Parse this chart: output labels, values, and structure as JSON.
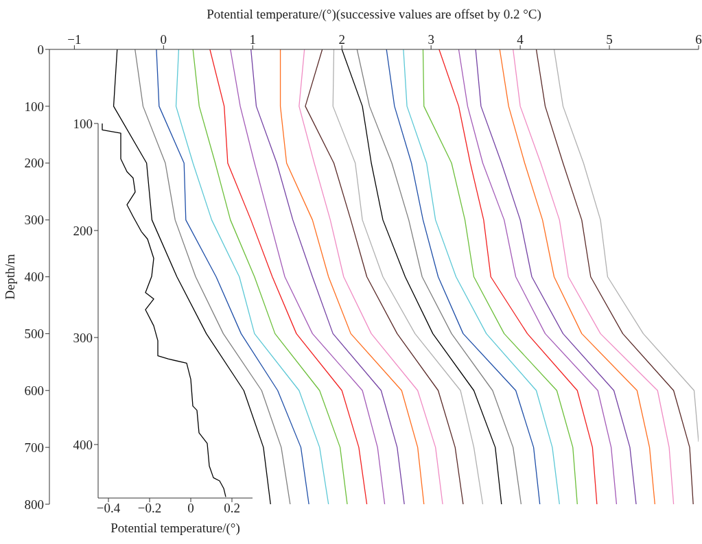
{
  "chart_data": [
    {
      "type": "line",
      "xlabel": "Potential temperature/(°)(successive values are offset by 0.2 °C)",
      "ylabel": "Depth/m",
      "xlim": [
        -1.28,
        6
      ],
      "xticks": [
        -1,
        0,
        1,
        2,
        3,
        4,
        5,
        6
      ],
      "ylim": [
        800,
        0
      ],
      "yticks": [
        0,
        100,
        200,
        300,
        400,
        500,
        600,
        700,
        800
      ],
      "series": [
        {
          "color": "#000000",
          "x": [
            -0.52,
            -0.56,
            -0.19,
            -0.13,
            0.15,
            0.48,
            0.9,
            1.12,
            1.2
          ],
          "values": [
            0,
            100,
            200,
            300,
            400,
            500,
            600,
            700,
            800
          ]
        },
        {
          "color": "#7f7f7f",
          "x": [
            -0.32,
            -0.23,
            0.02,
            0.13,
            0.36,
            0.67,
            1.1,
            1.32,
            1.42
          ],
          "values": [
            0,
            100,
            200,
            300,
            400,
            500,
            600,
            700,
            800
          ]
        },
        {
          "color": "#1f4fa8",
          "x": [
            -0.08,
            -0.05,
            0.23,
            0.25,
            0.59,
            0.87,
            1.28,
            1.54,
            1.63
          ],
          "values": [
            0,
            100,
            200,
            300,
            400,
            500,
            600,
            700,
            800
          ]
        },
        {
          "color": "#5cc8d6",
          "x": [
            0.17,
            0.14,
            0.33,
            0.54,
            0.85,
            1.02,
            1.52,
            1.75,
            1.85
          ],
          "values": [
            0,
            100,
            200,
            300,
            400,
            500,
            600,
            700,
            800
          ]
        },
        {
          "color": "#6cbf3a",
          "x": [
            0.33,
            0.4,
            0.58,
            0.75,
            1.02,
            1.25,
            1.75,
            1.98,
            2.06
          ],
          "values": [
            0,
            100,
            200,
            300,
            400,
            500,
            600,
            700,
            800
          ]
        },
        {
          "color": "#f22020",
          "x": [
            0.52,
            0.68,
            0.72,
            0.98,
            1.22,
            1.49,
            2.0,
            2.19,
            2.28
          ],
          "values": [
            0,
            100,
            200,
            300,
            400,
            500,
            600,
            700,
            800
          ]
        },
        {
          "color": "#a45cb8",
          "x": [
            0.75,
            0.86,
            1.02,
            1.19,
            1.36,
            1.67,
            2.23,
            2.4,
            2.48
          ],
          "values": [
            0,
            100,
            200,
            300,
            400,
            500,
            600,
            700,
            800
          ]
        },
        {
          "color": "#7442a4",
          "x": [
            0.98,
            1.04,
            1.27,
            1.45,
            1.67,
            1.9,
            2.44,
            2.62,
            2.7
          ],
          "values": [
            0,
            100,
            200,
            300,
            400,
            500,
            600,
            700,
            800
          ]
        },
        {
          "color": "#ff6f20",
          "x": [
            1.31,
            1.31,
            1.38,
            1.67,
            1.85,
            2.1,
            2.67,
            2.85,
            2.92
          ],
          "values": [
            0,
            100,
            200,
            300,
            400,
            500,
            600,
            700,
            800
          ]
        },
        {
          "color": "#f08cc4",
          "x": [
            1.58,
            1.52,
            1.69,
            1.87,
            2.02,
            2.33,
            2.85,
            3.05,
            3.13
          ],
          "values": [
            0,
            100,
            200,
            300,
            400,
            500,
            600,
            700,
            800
          ]
        },
        {
          "color": "#5a2a28",
          "x": [
            1.78,
            1.59,
            1.91,
            2.1,
            2.28,
            2.62,
            3.08,
            3.27,
            3.36
          ],
          "values": [
            0,
            100,
            200,
            300,
            400,
            500,
            600,
            700,
            800
          ]
        },
        {
          "color": "#b0b0b0",
          "x": [
            1.91,
            1.9,
            2.15,
            2.23,
            2.46,
            2.82,
            3.33,
            3.48,
            3.58
          ],
          "values": [
            0,
            100,
            200,
            300,
            400,
            500,
            600,
            700,
            800
          ]
        },
        {
          "color": "#000000",
          "x": [
            2.0,
            2.23,
            2.33,
            2.46,
            2.71,
            3.02,
            3.48,
            3.72,
            3.79
          ],
          "values": [
            0,
            100,
            200,
            300,
            400,
            500,
            600,
            700,
            800
          ]
        },
        {
          "color": "#7f7f7f",
          "x": [
            2.17,
            2.31,
            2.56,
            2.75,
            2.9,
            3.23,
            3.69,
            3.92,
            4.01
          ],
          "values": [
            0,
            100,
            200,
            300,
            400,
            500,
            600,
            700,
            800
          ]
        },
        {
          "color": "#1f4fa8",
          "x": [
            2.5,
            2.59,
            2.78,
            2.91,
            3.08,
            3.36,
            3.95,
            4.15,
            4.22
          ],
          "values": [
            0,
            100,
            200,
            300,
            400,
            500,
            600,
            700,
            800
          ]
        },
        {
          "color": "#5cc8d6",
          "x": [
            2.69,
            2.73,
            2.95,
            3.05,
            3.28,
            3.62,
            4.18,
            4.36,
            4.44
          ],
          "values": [
            0,
            100,
            200,
            300,
            400,
            500,
            600,
            700,
            800
          ]
        },
        {
          "color": "#6cbf3a",
          "x": [
            2.91,
            2.92,
            3.23,
            3.38,
            3.48,
            3.82,
            4.41,
            4.59,
            4.64
          ],
          "values": [
            0,
            100,
            200,
            300,
            400,
            500,
            600,
            700,
            800
          ]
        },
        {
          "color": "#f22020",
          "x": [
            3.09,
            3.31,
            3.44,
            3.59,
            3.67,
            4.08,
            4.64,
            4.81,
            4.86
          ],
          "values": [
            0,
            100,
            200,
            300,
            400,
            500,
            600,
            700,
            800
          ]
        },
        {
          "color": "#a45cb8",
          "x": [
            3.31,
            3.41,
            3.58,
            3.82,
            3.95,
            4.28,
            4.87,
            5.02,
            5.08
          ],
          "values": [
            0,
            100,
            200,
            300,
            400,
            500,
            600,
            700,
            800
          ]
        },
        {
          "color": "#7442a4",
          "x": [
            3.5,
            3.56,
            3.79,
            4.0,
            4.13,
            4.48,
            5.05,
            5.23,
            5.3
          ],
          "values": [
            0,
            100,
            200,
            300,
            400,
            500,
            600,
            700,
            800
          ]
        },
        {
          "color": "#ff6f20",
          "x": [
            3.77,
            3.87,
            4.05,
            4.25,
            4.38,
            4.69,
            5.31,
            5.45,
            5.51
          ],
          "values": [
            0,
            100,
            200,
            300,
            400,
            500,
            600,
            700,
            800
          ]
        },
        {
          "color": "#f08cc4",
          "x": [
            3.92,
            4.0,
            4.23,
            4.44,
            4.54,
            4.9,
            5.54,
            5.67,
            5.72
          ],
          "values": [
            0,
            100,
            200,
            300,
            400,
            500,
            600,
            700,
            800
          ]
        },
        {
          "color": "#5a2a28",
          "x": [
            4.18,
            4.28,
            4.48,
            4.69,
            4.79,
            5.15,
            5.72,
            5.9,
            5.94
          ],
          "values": [
            0,
            100,
            200,
            300,
            400,
            500,
            600,
            700,
            800
          ]
        },
        {
          "color": "#b0b0b0",
          "x": [
            4.38,
            4.48,
            4.71,
            4.9,
            4.98,
            5.38,
            5.95,
            6.0
          ],
          "values": [
            0,
            100,
            200,
            300,
            400,
            500,
            600,
            690
          ]
        }
      ]
    },
    {
      "type": "line",
      "xlabel": "Potential temperature/(°)",
      "xlim": [
        -0.45,
        0.3
      ],
      "xticks": [
        -0.4,
        -0.2,
        0,
        0.2
      ],
      "ylim": [
        450,
        100
      ],
      "yticks": [
        100,
        200,
        300,
        400
      ],
      "series": [
        {
          "color": "#000000",
          "x": [
            -0.43,
            -0.43,
            -0.34,
            -0.34,
            -0.31,
            -0.28,
            -0.27,
            -0.31,
            -0.28,
            -0.24,
            -0.21,
            -0.18,
            -0.19,
            -0.22,
            -0.18,
            -0.22,
            -0.18,
            -0.16,
            -0.16,
            -0.11,
            -0.02,
            0.0,
            0.01,
            0.03,
            0.04,
            0.08,
            0.09,
            0.11,
            0.14,
            0.16,
            0.17
          ],
          "values": [
            100,
            106,
            109,
            133,
            145,
            151,
            164,
            176,
            187,
            201,
            208,
            226,
            243,
            258,
            264,
            274,
            289,
            303,
            317,
            320,
            324,
            339,
            364,
            368,
            389,
            399,
            420,
            431,
            434,
            441,
            449
          ]
        }
      ]
    }
  ]
}
